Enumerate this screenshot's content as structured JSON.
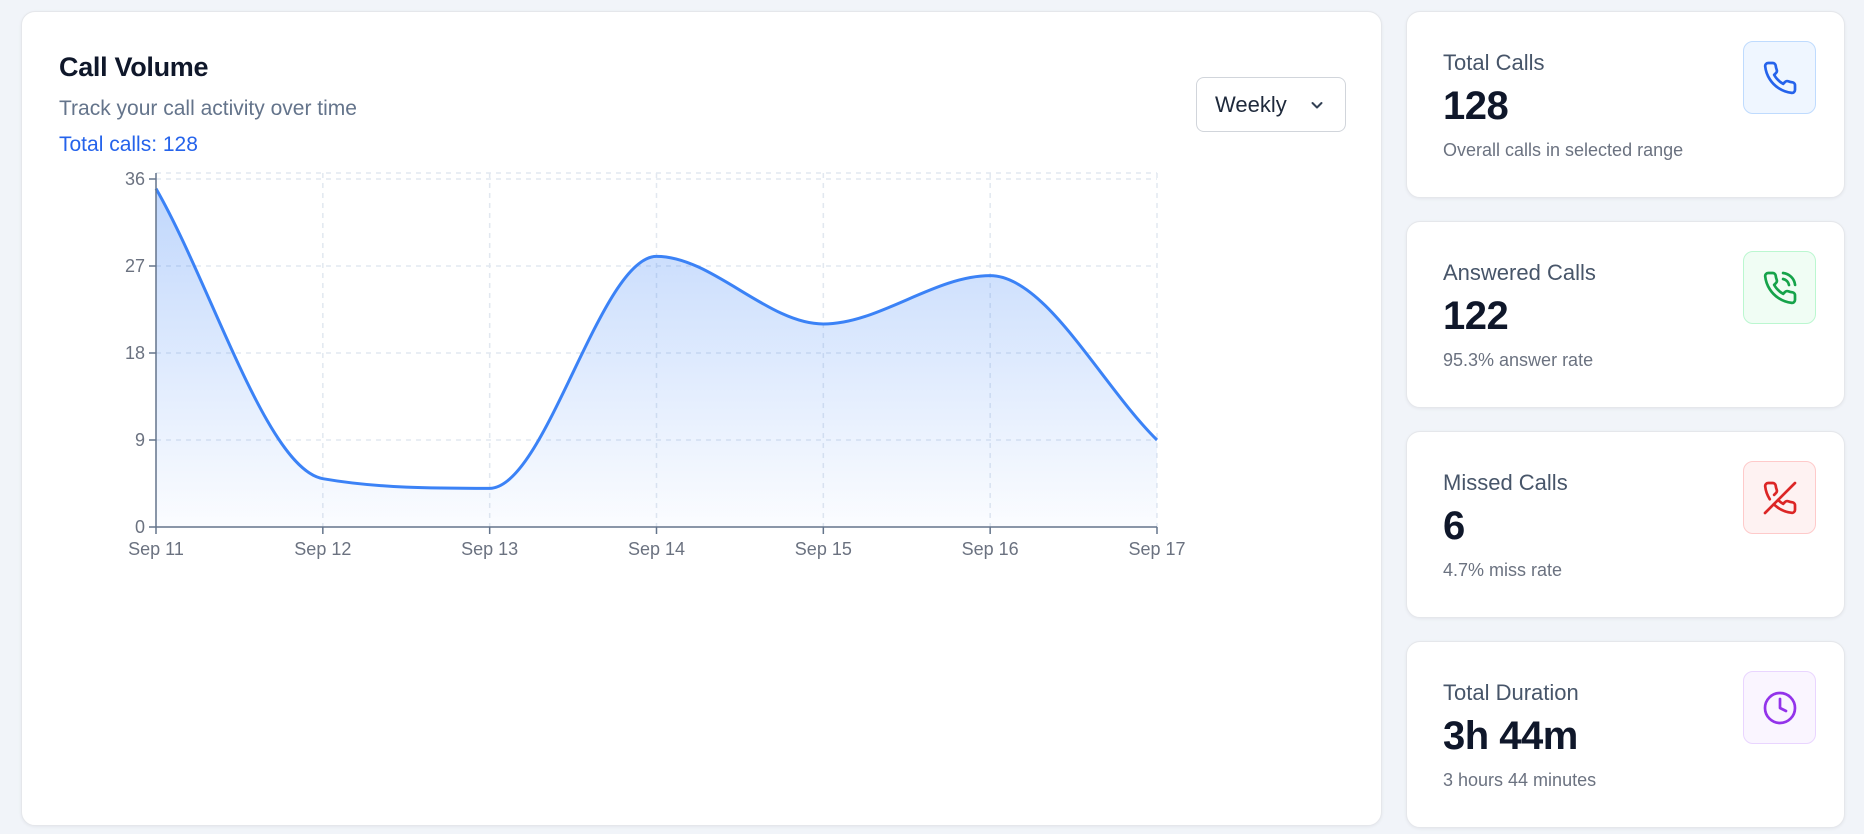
{
  "call_volume": {
    "title": "Call Volume",
    "subtitle": "Track your call activity over time",
    "total_text": "Total calls: 128",
    "range_selector": {
      "selected": "Weekly"
    }
  },
  "chart_data": {
    "type": "area",
    "x": [
      "Sep 11",
      "Sep 12",
      "Sep 13",
      "Sep 14",
      "Sep 15",
      "Sep 16",
      "Sep 17"
    ],
    "series": [
      {
        "values": [
          35,
          5,
          4,
          28,
          21,
          26,
          9
        ],
        "color": "#3b82f6"
      }
    ],
    "y_ticks": [
      0,
      9,
      18,
      27,
      36
    ],
    "ylim": [
      0,
      36
    ],
    "grid": true,
    "curve": "smooth"
  },
  "stats": [
    {
      "label": "Total Calls",
      "value": "128",
      "desc": "Overall calls in selected range",
      "icon": "phone-icon",
      "color": "#2563eb",
      "bg": "#eff6ff",
      "border": "#bfdbfe"
    },
    {
      "label": "Answered Calls",
      "value": "122",
      "desc": "95.3% answer rate",
      "icon": "phone-incoming-icon",
      "color": "#16a34a",
      "bg": "#f0fdf4",
      "border": "#bbf7d0"
    },
    {
      "label": "Missed Calls",
      "value": "6",
      "desc": "4.7% miss rate",
      "icon": "phone-missed-icon",
      "color": "#dc2626",
      "bg": "#fef2f2",
      "border": "#fecaca"
    },
    {
      "label": "Total Duration",
      "value": "3h 44m",
      "desc": "3 hours 44 minutes",
      "icon": "clock-icon",
      "color": "#9333ea",
      "bg": "#faf5ff",
      "border": "#e9d5ff"
    }
  ]
}
